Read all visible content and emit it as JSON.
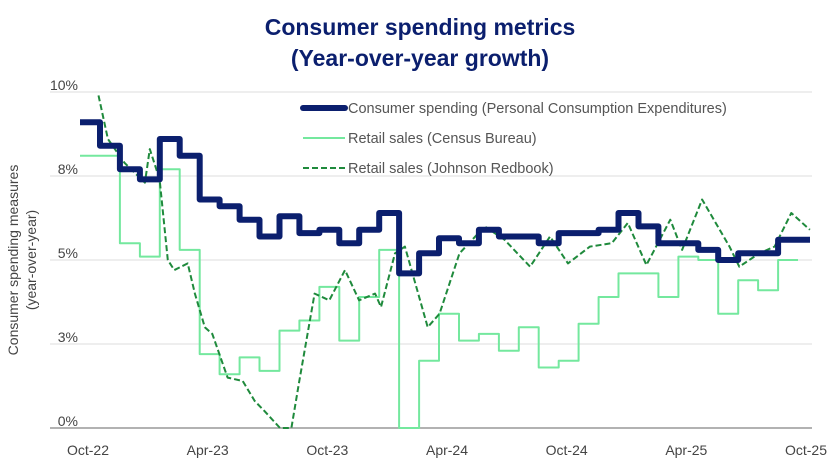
{
  "chart_data": {
    "type": "line",
    "title_line1": "Consumer spending metrics",
    "title_line2": "(Year-over-year growth)",
    "ylabel_line1": "Consumer spending measures",
    "ylabel_line2": "(year-over-year)",
    "xlabel": "",
    "ylim": [
      0,
      10
    ],
    "y_ticks": [
      0,
      2.5,
      5,
      7.5,
      10
    ],
    "y_tick_labels": [
      "0%",
      "3%",
      "5%",
      "8%",
      "10%"
    ],
    "x_range": [
      "2022-10",
      "2025-10"
    ],
    "x_ticks": [
      "2022-10",
      "2023-04",
      "2023-10",
      "2024-04",
      "2024-10",
      "2025-04",
      "2025-10"
    ],
    "x_tick_labels": [
      "Oct-22",
      "Apr-23",
      "Oct-23",
      "Apr-24",
      "Oct-24",
      "Apr-25",
      "Oct-25"
    ],
    "grid": "horizontal",
    "legend_position": "top-right",
    "months": [
      "2022-10",
      "2022-11",
      "2022-12",
      "2023-01",
      "2023-02",
      "2023-03",
      "2023-04",
      "2023-05",
      "2023-06",
      "2023-07",
      "2023-08",
      "2023-09",
      "2023-10",
      "2023-11",
      "2023-12",
      "2024-01",
      "2024-02",
      "2024-03",
      "2024-04",
      "2024-05",
      "2024-06",
      "2024-07",
      "2024-08",
      "2024-09",
      "2024-10",
      "2024-11",
      "2024-12",
      "2025-01",
      "2025-02",
      "2025-03",
      "2025-04",
      "2025-05",
      "2025-06",
      "2025-07",
      "2025-08",
      "2025-09",
      "2025-10"
    ],
    "series": [
      {
        "name": "Consumer spending (Personal Consumption Expenditures)",
        "color": "#0b1f6e",
        "style": "thick-step",
        "values": [
          9.1,
          8.4,
          7.7,
          7.4,
          8.6,
          8.1,
          6.8,
          6.6,
          6.2,
          5.7,
          6.3,
          5.8,
          5.9,
          5.5,
          5.9,
          6.4,
          4.6,
          5.2,
          5.65,
          5.5,
          5.9,
          5.7,
          5.7,
          5.5,
          5.8,
          5.8,
          5.9,
          6.4,
          6.0,
          5.5,
          5.5,
          5.3,
          5.0,
          5.2,
          5.2,
          5.6,
          5.6
        ]
      },
      {
        "name": "Retail sales (Census Bureau)",
        "color": "#74e89e",
        "style": "thin-step",
        "values": [
          8.1,
          8.1,
          5.5,
          5.1,
          7.7,
          5.3,
          2.2,
          1.6,
          2.1,
          1.7,
          2.9,
          3.2,
          4.2,
          2.6,
          3.9,
          5.3,
          0.0,
          2.0,
          3.4,
          2.6,
          2.8,
          2.3,
          3.0,
          1.8,
          2.0,
          3.1,
          3.9,
          4.6,
          4.6,
          3.9,
          5.1,
          5.0,
          3.4,
          4.4,
          4.1,
          5.0
        ]
      },
      {
        "name": "Retail sales (Johnson Redbook)",
        "color": "#1f8a3c",
        "style": "dashed",
        "points": [
          [
            "2022-10-17",
            9.9
          ],
          [
            "2022-11-01",
            8.6
          ],
          [
            "2022-11-26",
            7.9
          ],
          [
            "2022-12-27",
            7.3
          ],
          [
            "2023-01-04",
            8.3
          ],
          [
            "2023-01-19",
            7.4
          ],
          [
            "2023-02-01",
            5.0
          ],
          [
            "2023-02-11",
            4.7
          ],
          [
            "2023-03-01",
            4.9
          ],
          [
            "2023-03-12",
            4.0
          ],
          [
            "2023-03-27",
            3.0
          ],
          [
            "2023-04-08",
            2.8
          ],
          [
            "2023-05-01",
            1.5
          ],
          [
            "2023-05-24",
            1.4
          ],
          [
            "2023-06-12",
            0.8
          ],
          [
            "2023-06-27",
            0.5
          ],
          [
            "2023-07-20",
            0.0
          ],
          [
            "2023-08-07",
            0.0
          ],
          [
            "2023-08-19",
            1.4
          ],
          [
            "2023-09-12",
            4.0
          ],
          [
            "2023-10-04",
            3.8
          ],
          [
            "2023-10-28",
            4.7
          ],
          [
            "2023-11-19",
            3.8
          ],
          [
            "2023-12-13",
            4.0
          ],
          [
            "2023-12-22",
            3.6
          ],
          [
            "2024-01-13",
            5.2
          ],
          [
            "2024-01-28",
            5.4
          ],
          [
            "2024-03-02",
            3.0
          ],
          [
            "2024-03-20",
            3.4
          ],
          [
            "2024-04-20",
            5.2
          ],
          [
            "2024-05-28",
            6.0
          ],
          [
            "2024-06-28",
            5.6
          ],
          [
            "2024-08-06",
            4.8
          ],
          [
            "2024-09-06",
            5.7
          ],
          [
            "2024-10-03",
            4.9
          ],
          [
            "2024-11-06",
            5.4
          ],
          [
            "2024-12-09",
            5.5
          ],
          [
            "2025-01-03",
            6.1
          ],
          [
            "2025-02-01",
            4.85
          ],
          [
            "2025-03-07",
            6.2
          ],
          [
            "2025-03-25",
            5.3
          ],
          [
            "2025-04-25",
            6.8
          ],
          [
            "2025-06-06",
            5.4
          ],
          [
            "2025-06-21",
            4.8
          ],
          [
            "2025-07-21",
            5.2
          ],
          [
            "2025-08-14",
            5.4
          ],
          [
            "2025-09-09",
            6.4
          ],
          [
            "2025-10-07",
            5.9
          ]
        ]
      }
    ]
  }
}
